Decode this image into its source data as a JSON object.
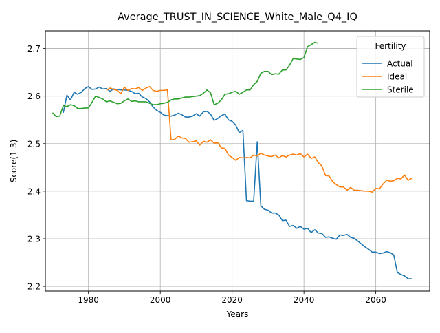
{
  "chart_data": {
    "type": "line",
    "title": "Average_TRUST_IN_SCIENCE_White_Male_Q4_IQ",
    "xlabel": "Years",
    "ylabel": "Score(1-3)",
    "xlim": [
      1968,
      2075
    ],
    "ylim": [
      2.19,
      2.737
    ],
    "xticks": [
      1980,
      2000,
      2020,
      2040,
      2060
    ],
    "yticks": [
      2.2,
      2.3,
      2.4,
      2.5,
      2.6,
      2.7
    ],
    "grid": true,
    "legend": {
      "title": "Fertility",
      "position": "top-right"
    },
    "series": [
      {
        "name": "Actual",
        "color": "#1f77b4",
        "x": [
          1973,
          1974,
          1975,
          1976,
          1977,
          1978,
          1979,
          1980,
          1981,
          1982,
          1983,
          1984,
          1985,
          1986,
          1987,
          1988,
          1989,
          1990,
          1991,
          1992,
          1993,
          1994,
          1995,
          1996,
          1997,
          1998,
          1999,
          2000,
          2001,
          2002,
          2003,
          2004,
          2005,
          2006,
          2007,
          2008,
          2009,
          2010,
          2011,
          2012,
          2013,
          2014,
          2015,
          2016,
          2017,
          2018,
          2019,
          2020,
          2021,
          2022,
          2023,
          2024,
          2025,
          2026,
          2027,
          2028,
          2029,
          2030,
          2031,
          2032,
          2033,
          2034,
          2035,
          2036,
          2037,
          2038,
          2039,
          2040,
          2041,
          2042,
          2043,
          2044,
          2045,
          2046,
          2047,
          2048,
          2049,
          2050,
          2051,
          2052,
          2053,
          2054,
          2055,
          2056,
          2057,
          2058,
          2059,
          2060,
          2061,
          2062,
          2063,
          2064,
          2065,
          2066,
          2067,
          2068,
          2069,
          2070
        ],
        "values": [
          2.565,
          2.602,
          2.592,
          2.608,
          2.604,
          2.608,
          2.616,
          2.62,
          2.614,
          2.615,
          2.619,
          2.615,
          2.616,
          2.61,
          2.615,
          2.614,
          2.613,
          2.613,
          2.612,
          2.61,
          2.605,
          2.606,
          2.598,
          2.595,
          2.588,
          2.577,
          2.57,
          2.566,
          2.56,
          2.559,
          2.558,
          2.56,
          2.564,
          2.561,
          2.556,
          2.556,
          2.558,
          2.563,
          2.558,
          2.567,
          2.568,
          2.562,
          2.549,
          2.553,
          2.559,
          2.562,
          2.55,
          2.547,
          2.539,
          2.523,
          2.528,
          2.38,
          2.379,
          2.379,
          2.504,
          2.369,
          2.362,
          2.36,
          2.354,
          2.354,
          2.35,
          2.338,
          2.339,
          2.326,
          2.328,
          2.322,
          2.326,
          2.32,
          2.322,
          2.313,
          2.319,
          2.312,
          2.311,
          2.303,
          2.304,
          2.301,
          2.299,
          2.308,
          2.307,
          2.309,
          2.303,
          2.301,
          2.295,
          2.289,
          2.283,
          2.278,
          2.272,
          2.272,
          2.269,
          2.27,
          2.273,
          2.271,
          2.266,
          2.229,
          2.225,
          2.222,
          2.216,
          2.216
        ]
      },
      {
        "name": "Ideal",
        "color": "#ff7f0e",
        "x": [
          1985,
          1986,
          1987,
          1988,
          1989,
          1990,
          1991,
          1992,
          1993,
          1994,
          1995,
          1996,
          1997,
          1998,
          1999,
          2000,
          2001,
          2002,
          2003,
          2004,
          2005,
          2006,
          2007,
          2008,
          2009,
          2010,
          2011,
          2012,
          2013,
          2014,
          2015,
          2016,
          2017,
          2018,
          2019,
          2020,
          2021,
          2022,
          2023,
          2024,
          2025,
          2026,
          2027,
          2028,
          2029,
          2030,
          2031,
          2032,
          2033,
          2034,
          2035,
          2036,
          2037,
          2038,
          2039,
          2040,
          2041,
          2042,
          2043,
          2044,
          2045,
          2046,
          2047,
          2048,
          2049,
          2050,
          2051,
          2052,
          2053,
          2054,
          2055,
          2056,
          2057,
          2058,
          2059,
          2060,
          2061,
          2062,
          2063,
          2064,
          2065,
          2066,
          2067,
          2068,
          2069,
          2070
        ],
        "values": [
          2.612,
          2.617,
          2.614,
          2.612,
          2.605,
          2.619,
          2.612,
          2.616,
          2.615,
          2.618,
          2.612,
          2.617,
          2.62,
          2.612,
          2.61,
          2.612,
          2.612,
          2.613,
          2.508,
          2.509,
          2.516,
          2.512,
          2.511,
          2.503,
          2.504,
          2.506,
          2.497,
          2.505,
          2.503,
          2.508,
          2.501,
          2.502,
          2.491,
          2.49,
          2.476,
          2.471,
          2.465,
          2.471,
          2.47,
          2.471,
          2.47,
          2.476,
          2.474,
          2.48,
          2.476,
          2.474,
          2.473,
          2.476,
          2.47,
          2.475,
          2.472,
          2.476,
          2.478,
          2.476,
          2.479,
          2.472,
          2.478,
          2.469,
          2.472,
          2.46,
          2.453,
          2.433,
          2.432,
          2.42,
          2.414,
          2.409,
          2.409,
          2.402,
          2.408,
          2.402,
          2.402,
          2.401,
          2.4,
          2.4,
          2.398,
          2.406,
          2.405,
          2.415,
          2.423,
          2.421,
          2.422,
          2.427,
          2.426,
          2.434,
          2.423,
          2.427
        ]
      },
      {
        "name": "Sterile",
        "color": "#2ca02c",
        "x": [
          1970,
          1971,
          1972,
          1973,
          1974,
          1975,
          1976,
          1977,
          1978,
          1979,
          1980,
          1981,
          1982,
          1983,
          1984,
          1985,
          1986,
          1987,
          1988,
          1989,
          1990,
          1991,
          1992,
          1993,
          1994,
          1995,
          1996,
          1997,
          1998,
          1999,
          2000,
          2001,
          2002,
          2003,
          2004,
          2005,
          2006,
          2007,
          2008,
          2009,
          2010,
          2011,
          2012,
          2013,
          2014,
          2015,
          2016,
          2017,
          2018,
          2019,
          2020,
          2021,
          2022,
          2023,
          2024,
          2025,
          2026,
          2027,
          2028,
          2029,
          2030,
          2031,
          2032,
          2033,
          2034,
          2035,
          2036,
          2037,
          2038,
          2039,
          2040,
          2041,
          2042,
          2043,
          2044
        ],
        "values": [
          2.565,
          2.557,
          2.558,
          2.58,
          2.578,
          2.582,
          2.58,
          2.574,
          2.574,
          2.575,
          2.575,
          2.587,
          2.6,
          2.597,
          2.594,
          2.588,
          2.59,
          2.587,
          2.584,
          2.585,
          2.59,
          2.594,
          2.589,
          2.59,
          2.588,
          2.588,
          2.588,
          2.585,
          2.582,
          2.582,
          2.584,
          2.585,
          2.587,
          2.592,
          2.594,
          2.594,
          2.596,
          2.598,
          2.598,
          2.599,
          2.6,
          2.601,
          2.606,
          2.613,
          2.607,
          2.582,
          2.585,
          2.592,
          2.604,
          2.605,
          2.608,
          2.61,
          2.604,
          2.608,
          2.613,
          2.613,
          2.624,
          2.631,
          2.648,
          2.652,
          2.652,
          2.645,
          2.647,
          2.646,
          2.655,
          2.655,
          2.665,
          2.679,
          2.678,
          2.677,
          2.681,
          2.704,
          2.708,
          2.713,
          2.711
        ]
      }
    ]
  }
}
